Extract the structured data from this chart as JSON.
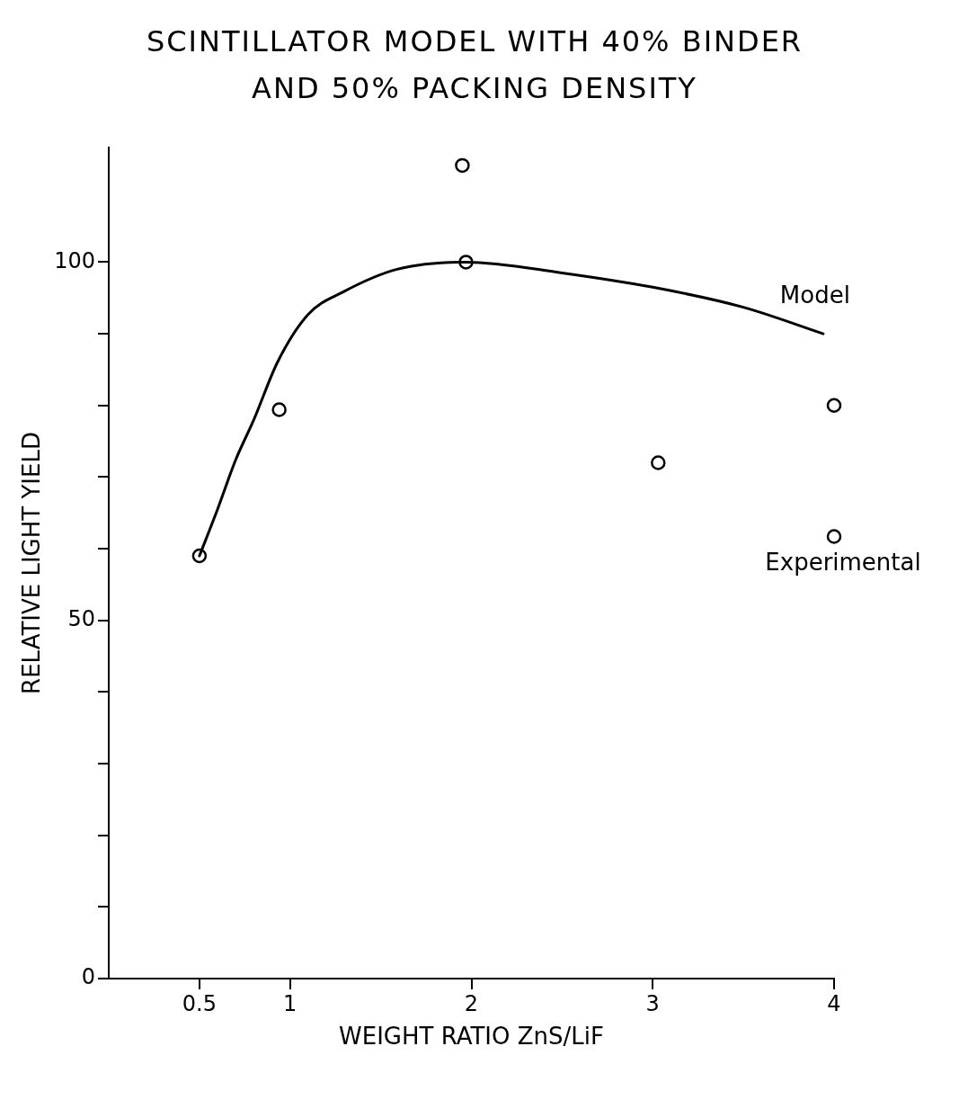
{
  "chart_data": {
    "type": "scatter",
    "title": "SCINTILLATOR MODEL WITH 40% BINDER AND 50% PACKING DENSITY",
    "xlabel": "WEIGHT RATIO ZnS/LiF",
    "ylabel": "RELATIVE LIGHT YIELD",
    "xlim": [
      0,
      4
    ],
    "xticks": [
      0.5,
      1,
      2,
      3,
      4
    ],
    "ylim": [
      0,
      116
    ],
    "yticks": [
      0,
      {
        "value": 10,
        "label": null
      },
      {
        "value": 20,
        "label": null
      },
      {
        "value": 30,
        "label": null
      },
      {
        "value": 40,
        "label": null
      },
      50,
      {
        "value": 60,
        "label": null
      },
      {
        "value": 70,
        "label": null
      },
      {
        "value": 80,
        "label": null
      },
      {
        "value": 90,
        "label": null
      },
      100
    ],
    "grid": false,
    "legend": false,
    "series": [
      {
        "name": "Model",
        "type": "line",
        "marker": "none",
        "line_style": "solid",
        "color": "#000000",
        "x": [
          0.5,
          0.6,
          0.7,
          0.8,
          0.93,
          1.1,
          1.29,
          1.59,
          1.97,
          2.5,
          3,
          3.5,
          3.94
        ],
        "values": [
          59,
          65.5,
          72.4,
          78,
          86,
          92.7,
          95.8,
          99,
          100,
          98.5,
          96.5,
          93.7,
          90
        ]
      },
      {
        "name": "Experimental",
        "type": "scatter",
        "marker": "circle",
        "color": "#000000",
        "x": [
          0.5,
          0.94,
          1.95,
          1.97,
          3.03,
          4,
          4
        ],
        "values": [
          59,
          79.4,
          113.5,
          100,
          72,
          80,
          61.7
        ]
      }
    ]
  }
}
